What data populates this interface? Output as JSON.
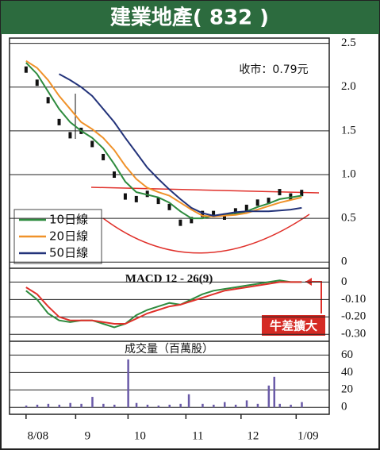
{
  "chart_data": [
    {
      "type": "candle",
      "title": "建業地產( 832 )",
      "annotation": "收市：0.79元",
      "x": [
        0,
        4,
        8,
        12,
        16,
        20,
        24,
        28,
        32,
        36,
        40,
        44,
        48,
        52,
        56,
        60,
        64,
        68,
        72,
        76,
        80,
        84,
        88,
        92,
        96,
        100
      ],
      "price": [
        2.2,
        2.05,
        1.85,
        1.6,
        1.45,
        1.5,
        1.35,
        1.2,
        1.0,
        0.75,
        0.72,
        0.78,
        0.7,
        0.63,
        0.45,
        0.48,
        0.55,
        0.55,
        0.52,
        0.58,
        0.62,
        0.68,
        0.7,
        0.8,
        0.75,
        0.79
      ],
      "price_color": "#111111",
      "series": [
        {
          "name": "10日線",
          "color": "#2e8b3e",
          "values": [
            2.28,
            2.15,
            1.95,
            1.75,
            1.6,
            1.5,
            1.42,
            1.3,
            1.12,
            0.92,
            0.8,
            0.77,
            0.74,
            0.68,
            0.58,
            0.5,
            0.5,
            0.53,
            0.54,
            0.55,
            0.58,
            0.63,
            0.67,
            0.72,
            0.74,
            0.76
          ]
        },
        {
          "name": "20日線",
          "color": "#f0922a",
          "values": [
            2.3,
            2.22,
            2.08,
            1.9,
            1.75,
            1.6,
            1.52,
            1.42,
            1.28,
            1.1,
            0.95,
            0.85,
            0.8,
            0.76,
            0.68,
            0.6,
            0.53,
            0.52,
            0.53,
            0.54,
            0.56,
            0.6,
            0.64,
            0.68,
            0.71,
            0.74
          ]
        },
        {
          "name": "50日線",
          "color": "#23337a",
          "values": [
            null,
            null,
            null,
            2.15,
            2.08,
            2.0,
            1.9,
            1.75,
            1.6,
            1.42,
            1.25,
            1.08,
            0.95,
            0.83,
            0.72,
            0.62,
            0.56,
            0.53,
            0.55,
            0.57,
            0.58,
            0.58,
            0.58,
            0.59,
            0.6,
            0.62
          ]
        }
      ],
      "xlim": [
        -6,
        110
      ],
      "ylim": [
        -0.07,
        2.56
      ],
      "yticks": [
        {
          "value": 2.5,
          "label": "2.5"
        },
        {
          "value": 2,
          "label": "2.0"
        },
        {
          "value": 1.5,
          "label": "1.5"
        },
        {
          "value": 1,
          "label": "1.0"
        },
        {
          "value": 0.5,
          "label": "0.5"
        },
        0
      ],
      "grid": true
    },
    {
      "type": "line",
      "title": "MACD 12 - 26(9)",
      "annotation": "牛差擴大",
      "x": [
        0,
        4,
        8,
        12,
        16,
        20,
        24,
        28,
        32,
        36,
        40,
        44,
        48,
        52,
        56,
        60,
        64,
        68,
        72,
        76,
        80,
        84,
        88,
        92,
        96,
        100
      ],
      "series": [
        {
          "color": "#2e8b3e",
          "values": [
            -0.05,
            -0.1,
            -0.18,
            -0.22,
            -0.23,
            -0.22,
            -0.22,
            -0.24,
            -0.26,
            -0.24,
            -0.19,
            -0.16,
            -0.14,
            -0.12,
            -0.13,
            -0.1,
            -0.07,
            -0.05,
            -0.04,
            -0.03,
            -0.02,
            -0.01,
            0.0,
            0.01,
            0.0,
            0.0
          ]
        },
        {
          "color": "#e0302a",
          "values": [
            -0.03,
            -0.07,
            -0.14,
            -0.2,
            -0.22,
            -0.22,
            -0.22,
            -0.23,
            -0.24,
            -0.24,
            -0.21,
            -0.18,
            -0.16,
            -0.14,
            -0.13,
            -0.11,
            -0.09,
            -0.07,
            -0.05,
            -0.04,
            -0.03,
            -0.02,
            -0.01,
            0.0,
            0.0,
            0.0
          ]
        }
      ],
      "xlim": [
        -6,
        110
      ],
      "ylim": [
        -0.34,
        0.07
      ],
      "yticks": [
        0,
        {
          "value": -0.1,
          "label": "-0.10"
        },
        {
          "value": -0.2,
          "label": "-0.20"
        },
        {
          "value": -0.3,
          "label": "-0.30"
        }
      ],
      "grid": true
    },
    {
      "type": "bar",
      "title": "成交量（百萬股）",
      "color": "#6a5aa8",
      "x": [
        0,
        4,
        8,
        12,
        16,
        20,
        24,
        28,
        32,
        37,
        40,
        44,
        48,
        52,
        56,
        59,
        64,
        68,
        72,
        76,
        80,
        84,
        88,
        90,
        92,
        96,
        100
      ],
      "values": [
        2,
        3,
        4,
        3,
        5,
        4,
        12,
        4,
        3,
        55,
        5,
        3,
        2,
        3,
        4,
        15,
        4,
        3,
        6,
        3,
        8,
        4,
        25,
        35,
        4,
        3,
        6
      ],
      "xlim": [
        -6,
        110
      ],
      "ylim": [
        -8,
        74
      ],
      "yticks": [
        60,
        40,
        20,
        0
      ],
      "xticks": [
        {
          "value": 0,
          "label": "8/08"
        },
        {
          "value": 18,
          "label": "9"
        },
        {
          "value": 37,
          "label": "10"
        },
        {
          "value": 58,
          "label": "11"
        },
        {
          "value": 78,
          "label": "12"
        },
        {
          "value": 98,
          "label": "1/09"
        }
      ],
      "grid": true
    }
  ]
}
